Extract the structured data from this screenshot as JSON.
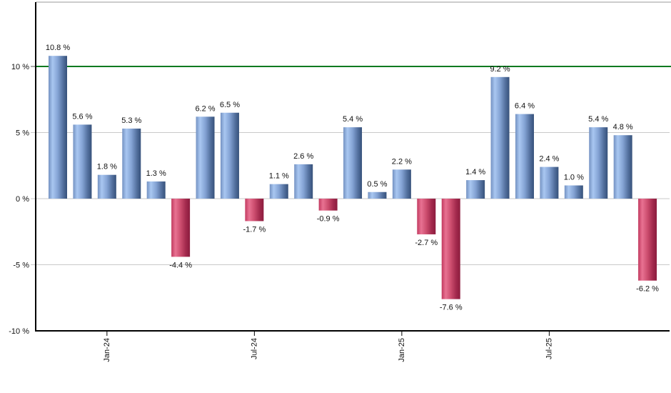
{
  "chart_data": {
    "type": "bar",
    "title": "",
    "xlabel": "",
    "ylabel": "",
    "values": [
      10.8,
      5.6,
      1.8,
      5.3,
      1.3,
      -4.4,
      6.2,
      6.5,
      -1.7,
      1.1,
      2.6,
      -0.9,
      5.4,
      0.5,
      2.2,
      -2.7,
      -7.6,
      1.4,
      9.2,
      6.4,
      2.4,
      1.0,
      5.4,
      4.8,
      -6.2
    ],
    "bar_labels": [
      "10.8 %",
      "5.6 %",
      "1.8 %",
      "5.3 %",
      "1.3 %",
      "-4.4 %",
      "6.2 %",
      "6.5 %",
      "-1.7 %",
      "1.1 %",
      "2.6 %",
      "-0.9 %",
      "5.4 %",
      "0.5 %",
      "2.2 %",
      "-2.7 %",
      "-7.6 %",
      "1.4 %",
      "9.2 %",
      "6.4 %",
      "2.4 %",
      "1.0 %",
      "5.4 %",
      "4.8 %",
      "-6.2 %"
    ],
    "x_ticks": [
      {
        "index": 2,
        "label": "Jan-24"
      },
      {
        "index": 8,
        "label": "Jul-24"
      },
      {
        "index": 14,
        "label": "Jan-25"
      },
      {
        "index": 20,
        "label": "Jul-25"
      }
    ],
    "y_ticks": [
      {
        "value": 10,
        "label": "10 %"
      },
      {
        "value": 5,
        "label": "5 %"
      },
      {
        "value": 0,
        "label": "0 %"
      },
      {
        "value": -5,
        "label": "-5 %"
      },
      {
        "value": -10,
        "label": "-10 %"
      }
    ],
    "ylim": [
      -10,
      14.9
    ],
    "baseline_value": 0,
    "grid": true,
    "legend": null,
    "threshold_line": {
      "value": 10,
      "color": "#0b7a20"
    },
    "colors": {
      "positive_bar_stops": [
        "#7492c2",
        "#a9c7f1",
        "#84a3d4",
        "#54719f",
        "#36517a"
      ],
      "negative_bar_stops": [
        "#c23a60",
        "#e87292",
        "#cc4d6e",
        "#a32a4d",
        "#8c1c3e"
      ],
      "gridline": "#c9c9c9",
      "top_border": "#cccccc",
      "axis": "#000000",
      "text": "#111111",
      "background": "#ffffff"
    }
  }
}
